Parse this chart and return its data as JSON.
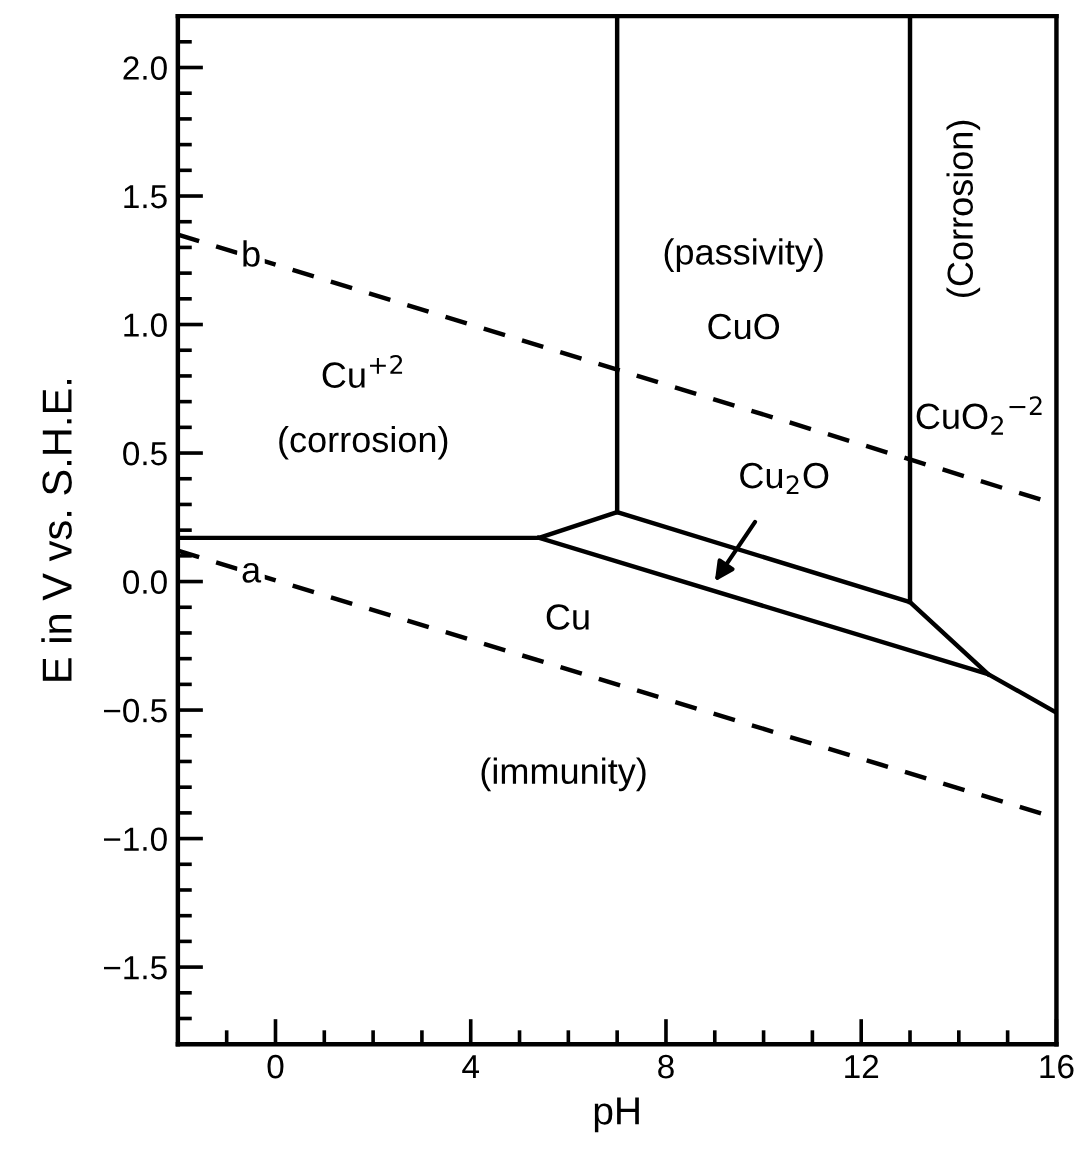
{
  "chart_data": {
    "type": "line",
    "xlabel": "pH",
    "ylabel": "E in V vs. S.H.E.",
    "xlim": [
      -2,
      16
    ],
    "ylim": [
      -1.8,
      2.2
    ],
    "xticks": [
      0,
      4,
      8,
      12,
      16
    ],
    "yticks": [
      {
        "value": -1.5,
        "label": "−1.5"
      },
      {
        "value": -1.0,
        "label": "−1.0"
      },
      {
        "value": -0.5,
        "label": "−0.5"
      },
      {
        "value": 0,
        "label": "0.0"
      },
      0.5,
      {
        "value": 1,
        "label": "1.0"
      },
      1.5,
      {
        "value": 2,
        "label": "2.0"
      }
    ],
    "grid": false,
    "series": [
      {
        "name": "b",
        "color": "#000000",
        "line_style": "dashed",
        "x": [
          -2,
          16
        ],
        "values": [
          1.35,
          0.3
        ]
      },
      {
        "name": "a",
        "color": "#000000",
        "line_style": "dashed",
        "x": [
          -2,
          16
        ],
        "values": [
          0.12,
          -0.92
        ]
      },
      {
        "color": "#000000",
        "line_style": "solid",
        "x": [
          -2,
          5.4,
          7,
          13,
          14.6
        ],
        "values": [
          0.17,
          0.17,
          0.27,
          -0.08,
          -0.36
        ]
      },
      {
        "color": "#000000",
        "line_style": "solid",
        "x": [
          5.4,
          14.6,
          16
        ],
        "values": [
          0.17,
          -0.36,
          -0.51
        ]
      },
      {
        "color": "#000000",
        "line_style": "solid",
        "x": [
          7,
          7
        ],
        "values": [
          0.27,
          2.2
        ]
      },
      {
        "color": "#000000",
        "line_style": "solid",
        "x": [
          13,
          13
        ],
        "values": [
          -0.08,
          2.2
        ]
      }
    ],
    "annotations": [
      {
        "text": "Cu$_{2}$O",
        "x": 9.0,
        "y": 0.0
      },
      "(Corrosion)",
      "Cu$^{+2}$",
      "(corrosion)",
      "(passivity)",
      "CuO",
      "CuO$_{2}$$^{−2}$",
      "Cu",
      "(immunity)"
    ]
  }
}
